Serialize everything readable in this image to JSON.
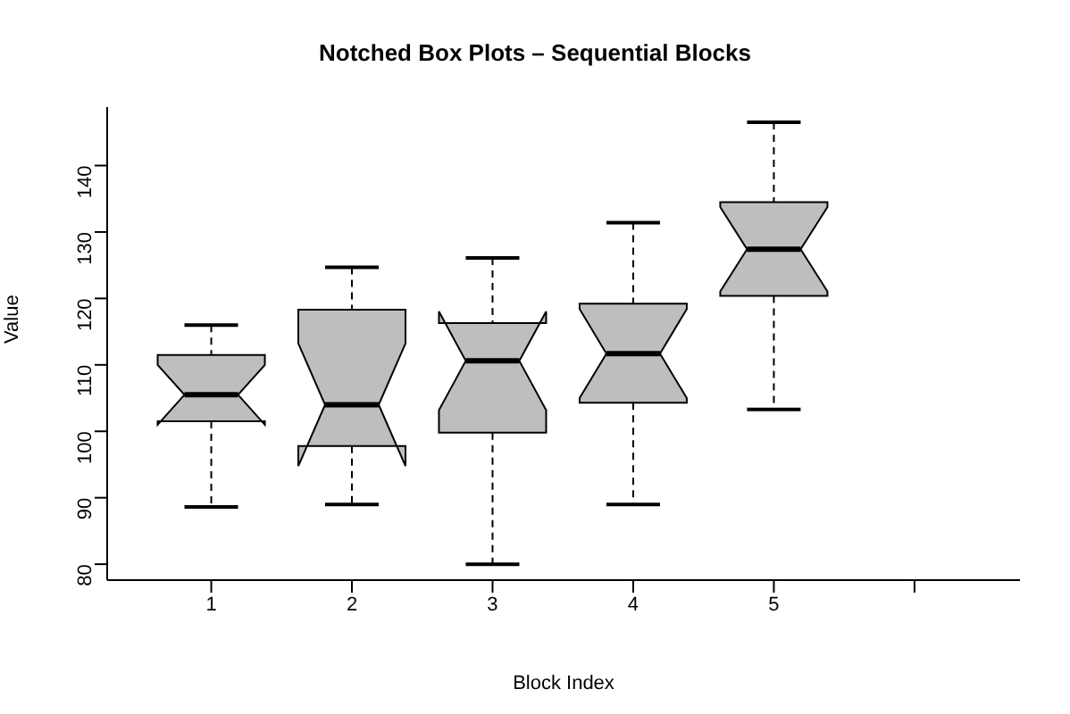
{
  "chart_data": {
    "type": "box",
    "title": "Notched Box Plots – Sequential Blocks",
    "xlabel": "Block Index",
    "ylabel": "Value",
    "categories": [
      "1",
      "2",
      "3",
      "4",
      "5",
      null
    ],
    "color": "#bebebe",
    "boxes": [
      {
        "low": 88.6,
        "q1": 101.5,
        "median": 105.5,
        "q3": 111.5,
        "high": 116
      },
      {
        "low": 89,
        "q1": 97.8,
        "median": 104,
        "q3": 118.3,
        "high": 124.7
      },
      {
        "low": 80,
        "q1": 99.8,
        "median": 110.6,
        "q3": 116.3,
        "high": 126.1
      },
      {
        "low": 89,
        "q1": 104.3,
        "median": 111.7,
        "q3": 119.2,
        "high": 131.4
      },
      {
        "low": 103.3,
        "q1": 120.4,
        "median": 127.4,
        "q3": 134.5,
        "high": 146.5
      },
      null
    ],
    "ylim": [
      77.6,
      148.8
    ],
    "yticks": [
      80,
      90,
      100,
      110,
      120,
      130,
      140
    ],
    "grid": false
  }
}
